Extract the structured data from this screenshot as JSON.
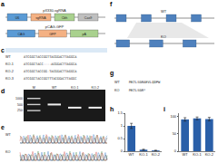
{
  "panels": {
    "a": {
      "label": "a",
      "rows": [
        {
          "name": "pX330-sgRNA",
          "parts": [
            "U6",
            "sgRNA",
            "Cbh",
            "Cas9"
          ]
        },
        {
          "name": "pCAG-GFP",
          "parts": [
            "CAG",
            "GFP",
            "pA"
          ]
        }
      ]
    },
    "c": {
      "label": "c",
      "rows": [
        {
          "name": "WT",
          "seq": "ATCGGCTACCGGTTACGGACTTAGGCA"
        },
        {
          "name": "KO-1",
          "seq": "ATCGGCTACC----ACGGACTTAGGCA"
        },
        {
          "name": "KO-2",
          "seq": "ATCGGCTACCGG-TACGGACTTAGGCA"
        },
        {
          "name": "KO-3",
          "seq": "ATCGGCTACCGGTTTACGGACTTAGGC"
        }
      ]
    },
    "d": {
      "label": "d",
      "ladder": [
        1000,
        500,
        250
      ],
      "lanes": [
        {
          "name": "M"
        },
        {
          "name": "WT",
          "band": 500
        },
        {
          "name": "KO-1",
          "band": 350
        },
        {
          "name": "KO-2",
          "band": 350
        }
      ]
    },
    "e": {
      "label": "e",
      "tracks": [
        "WT",
        "KO"
      ]
    },
    "f": {
      "label": "f",
      "genes": [
        {
          "name": "WT",
          "exons": 4
        },
        {
          "name": "KO",
          "exons": 3
        }
      ]
    },
    "g": {
      "label": "g",
      "rows": [
        {
          "name": "WT",
          "seq": "MKTLSGRAEVLQDPW"
        },
        {
          "name": "KO",
          "seq": "MKTLSGR*"
        }
      ]
    },
    "h": {
      "label": "h"
    },
    "i": {
      "label": "i"
    }
  },
  "chart_data": [
    {
      "type": "bar",
      "categories": [
        "WT",
        "KO-1",
        "KO-2"
      ],
      "values": [
        1,
        0.06,
        0.03
      ],
      "errors": [
        0.1,
        0.02,
        0.01
      ],
      "color": "#2a5fa8",
      "ylim": [
        0,
        1.5
      ],
      "yticks": [
        0,
        0.5,
        1,
        1.5
      ],
      "grid": false
    },
    {
      "type": "bar",
      "categories": [
        "WT",
        "KO-1",
        "KO-2"
      ],
      "values": [
        92,
        95,
        93
      ],
      "errors": [
        5,
        4,
        5
      ],
      "color": "#2a5fa8",
      "ylim": [
        0,
        110
      ],
      "yticks": [
        0,
        50,
        100
      ],
      "grid": false
    }
  ]
}
